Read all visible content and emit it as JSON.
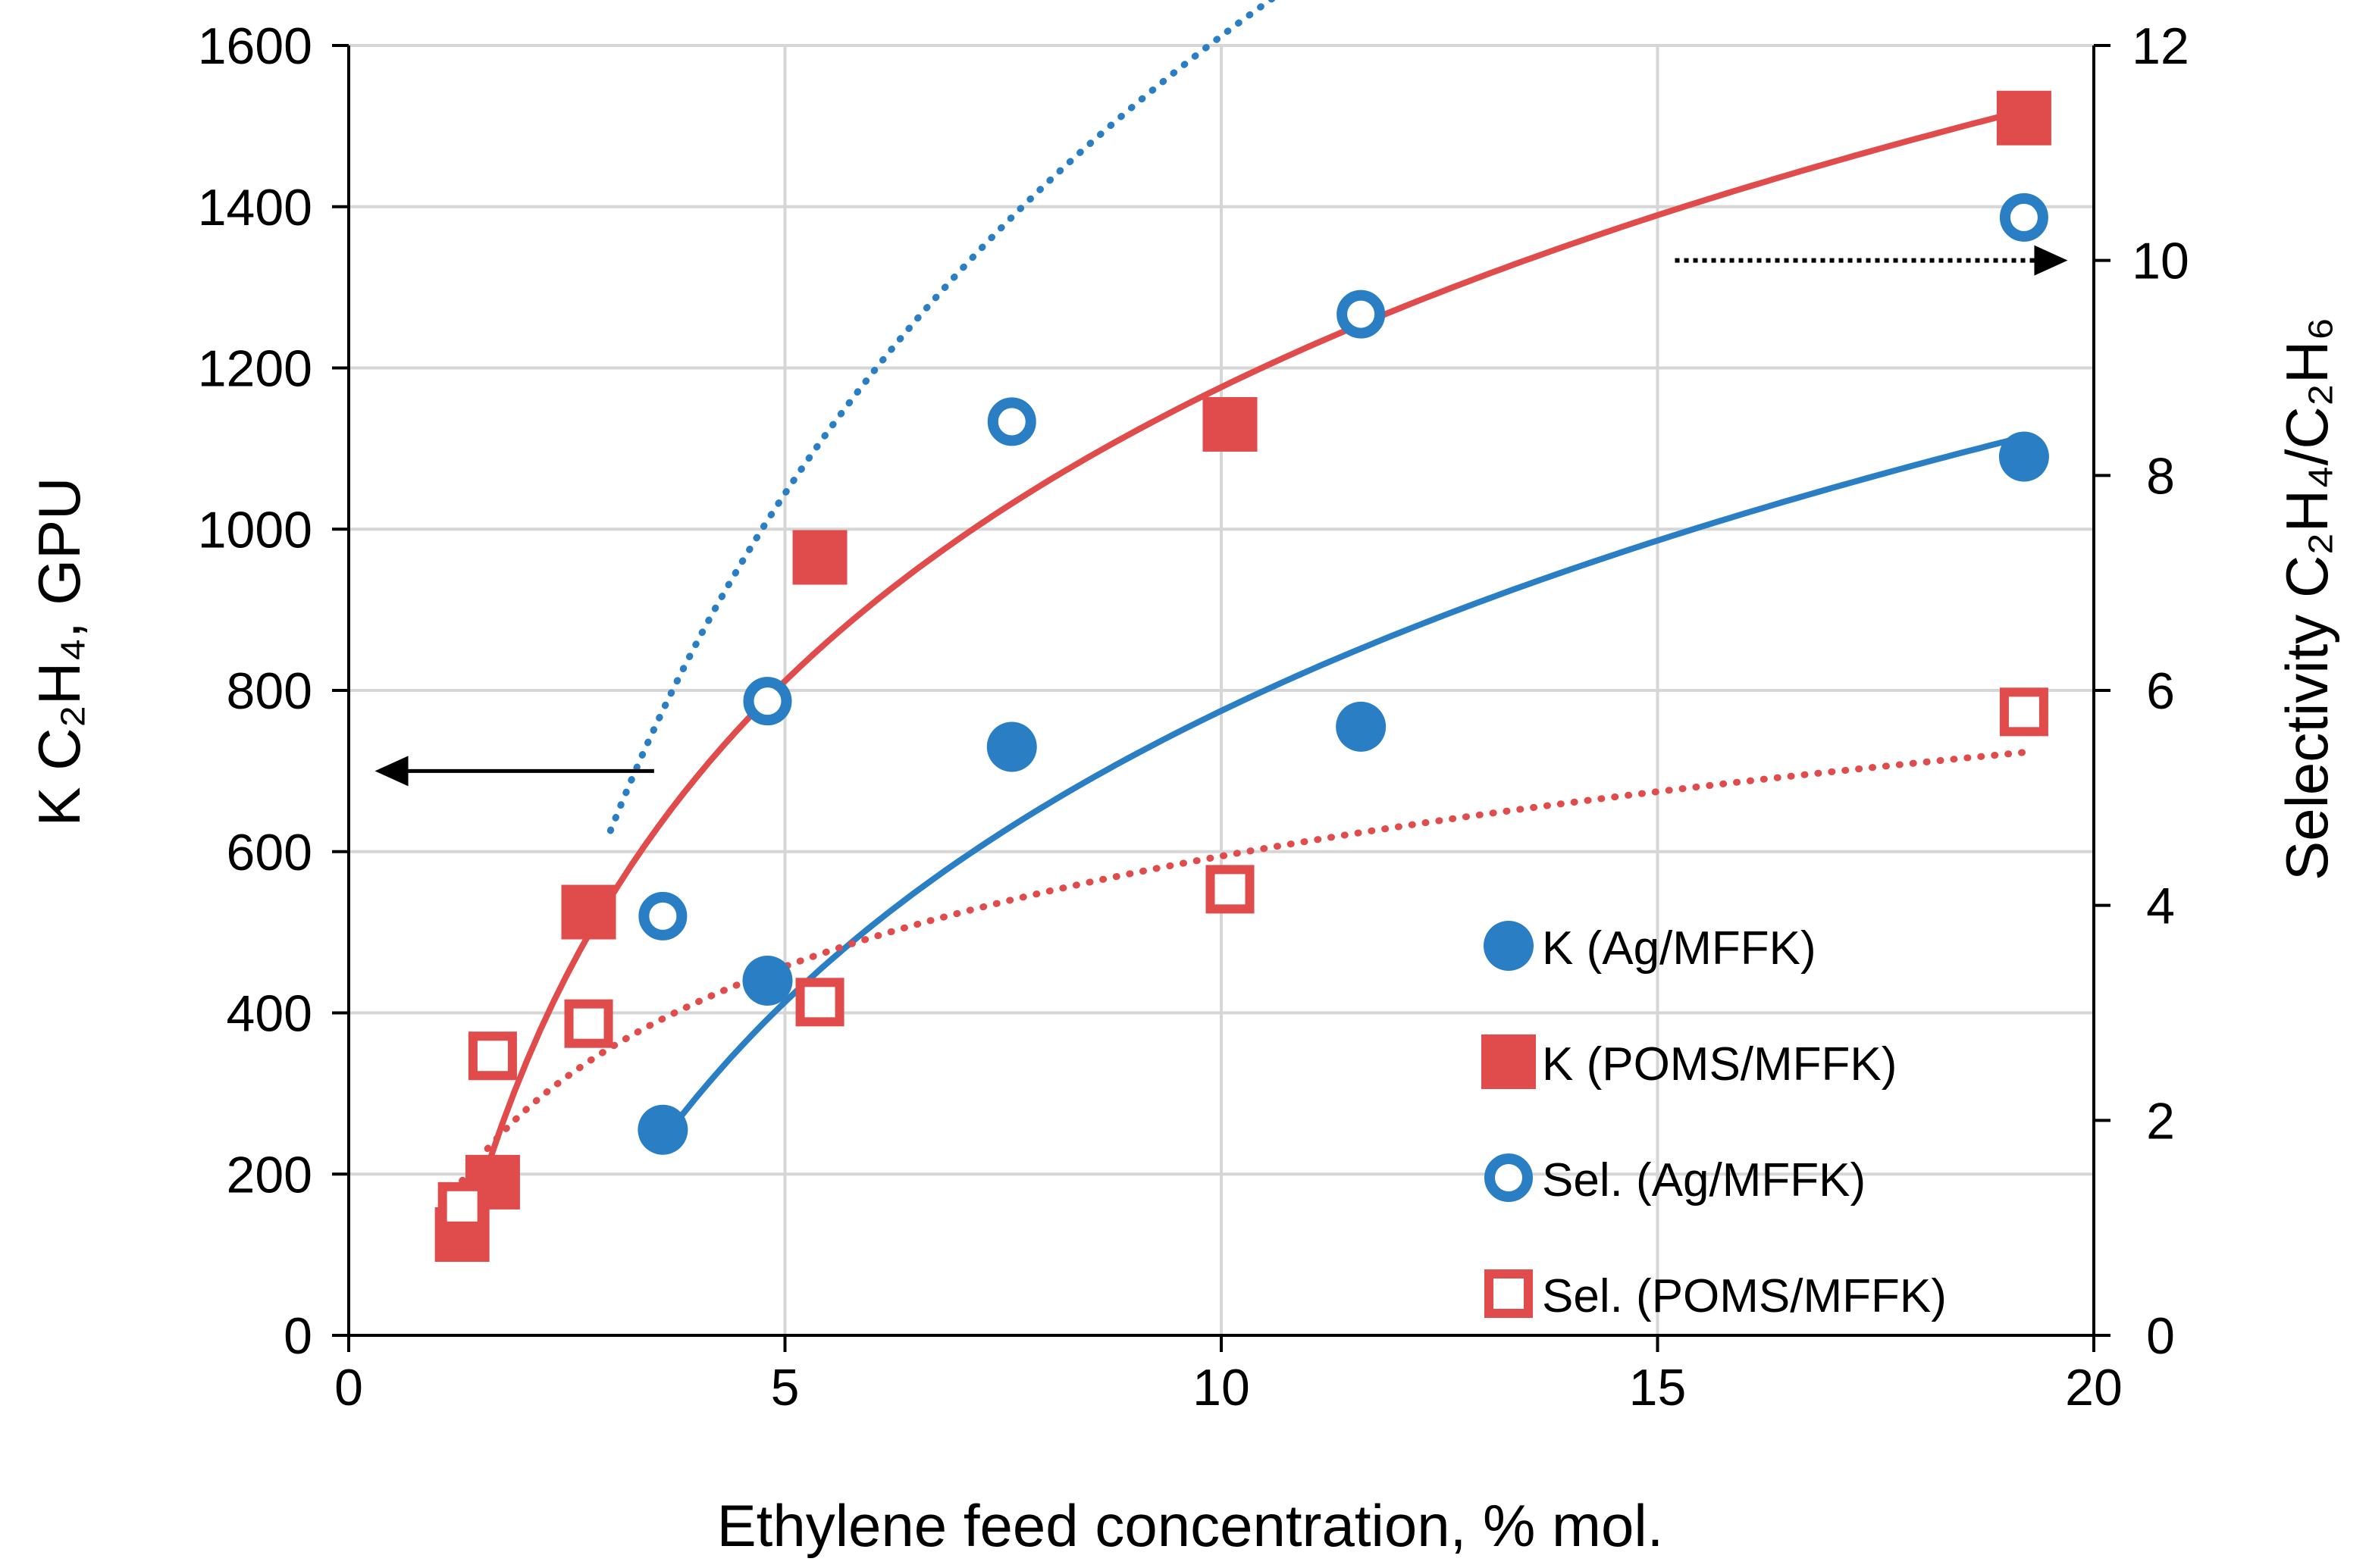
{
  "chart_data": {
    "type": "scatter",
    "title": "",
    "xlabel": "Ethylene feed concentration, % mol.",
    "ylabel_left": "K C₂H₄, GPU",
    "ylabel_right": "Selectivity C₂H₄/C₂H₆",
    "xlim": [
      0,
      20
    ],
    "ylim_left": [
      0,
      1600
    ],
    "ylim_right": [
      0,
      12
    ],
    "x_ticks": [
      "0",
      "5",
      "10",
      "15",
      "20"
    ],
    "y_left_ticks": [
      "0",
      "200",
      "400",
      "600",
      "800",
      "1000",
      "1200",
      "1400",
      "1600"
    ],
    "y_right_ticks": [
      "0",
      "2",
      "4",
      "6",
      "8",
      "10",
      "12"
    ],
    "x_tick_values": [
      0,
      5,
      10,
      15,
      20
    ],
    "y_left_tick_values": [
      0,
      200,
      400,
      600,
      800,
      1000,
      1200,
      1400,
      1600
    ],
    "y_right_tick_values": [
      0,
      2,
      4,
      6,
      8,
      10,
      12
    ],
    "grid": true,
    "legend_position": "bottom-right",
    "series": [
      {
        "name": "K (Ag/MFFK)",
        "axis": "left",
        "marker": "filled-circle",
        "color": "#2a7ec4",
        "x": [
          3.6,
          4.8,
          7.6,
          11.6,
          19.2
        ],
        "y": [
          255,
          440,
          730,
          755,
          1090
        ],
        "trend": {
          "kind": "log",
          "style": "solid",
          "x_range": [
            3.6,
            19.2
          ],
          "a": -425,
          "b": 521
        }
      },
      {
        "name": "K (POMS/MFFK)",
        "axis": "left",
        "marker": "filled-square",
        "color": "#e04b4b",
        "x": [
          1.3,
          1.65,
          2.75,
          5.4,
          10.1,
          19.2
        ],
        "y": [
          125,
          190,
          525,
          965,
          1130,
          1510
        ],
        "trend": {
          "kind": "log",
          "style": "solid",
          "x_range": [
            1.3,
            19.2
          ],
          "a": -35,
          "b": 526
        }
      },
      {
        "name": "Sel. (Ag/MFFK)",
        "axis": "right",
        "marker": "open-circle",
        "color": "#2a7ec4",
        "x": [
          3.6,
          4.8,
          7.6,
          11.6,
          19.2
        ],
        "y": [
          3.9,
          5.9,
          8.5,
          9.5,
          10.4
        ],
        "trend": {
          "kind": "log",
          "style": "dotted",
          "x_range": [
            3.0,
            19.2
          ],
          "a": -2.05,
          "b": 6.14
        }
      },
      {
        "name": "Sel. (POMS/MFFK)",
        "axis": "right",
        "marker": "open-square",
        "color": "#e04b4b",
        "x": [
          1.3,
          1.65,
          2.75,
          5.4,
          10.1,
          19.2
        ],
        "y": [
          1.2,
          2.6,
          2.9,
          3.1,
          4.15,
          5.8
        ],
        "trend": {
          "kind": "log",
          "style": "dotted",
          "x_range": [
            1.3,
            19.2
          ],
          "a": 1.05,
          "b": 1.48
        }
      }
    ],
    "annotations": [
      {
        "kind": "arrow",
        "style": "solid",
        "points_to": "left axis",
        "from": [
          3.5,
          700
        ],
        "to": [
          0.3,
          700
        ],
        "axis": "left"
      },
      {
        "kind": "arrow",
        "style": "dotted",
        "points_to": "right axis",
        "from": [
          15.2,
          10
        ],
        "to": [
          19.7,
          10
        ],
        "axis": "right"
      }
    ]
  }
}
